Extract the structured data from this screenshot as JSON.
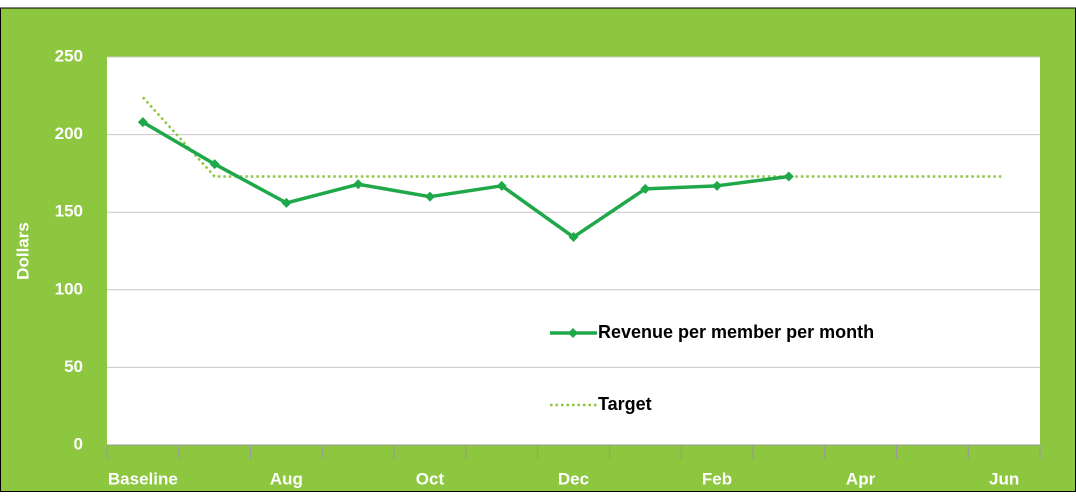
{
  "chart_data": {
    "type": "line",
    "y_label": "Dollars",
    "categories": [
      "Baseline",
      null,
      "Aug",
      null,
      "Oct",
      null,
      "Dec",
      null,
      "Feb",
      null,
      "Apr",
      null,
      "Jun"
    ],
    "series": [
      {
        "name": "Revenue per member per month",
        "color": "#1fa84a",
        "style": "solid",
        "marker": "diamond",
        "values": [
          208,
          181,
          156,
          168,
          160,
          167,
          134,
          165,
          167,
          173,
          null,
          null,
          null
        ]
      },
      {
        "name": "Target",
        "color": "#8dc63f",
        "style": "dotted",
        "marker": "none",
        "values": [
          224,
          173,
          173,
          173,
          173,
          173,
          173,
          173,
          173,
          173,
          173,
          173,
          173
        ]
      }
    ],
    "ylim": [
      0,
      250
    ],
    "yticks": [
      0,
      50,
      100,
      150,
      200,
      250
    ],
    "grid": true
  }
}
